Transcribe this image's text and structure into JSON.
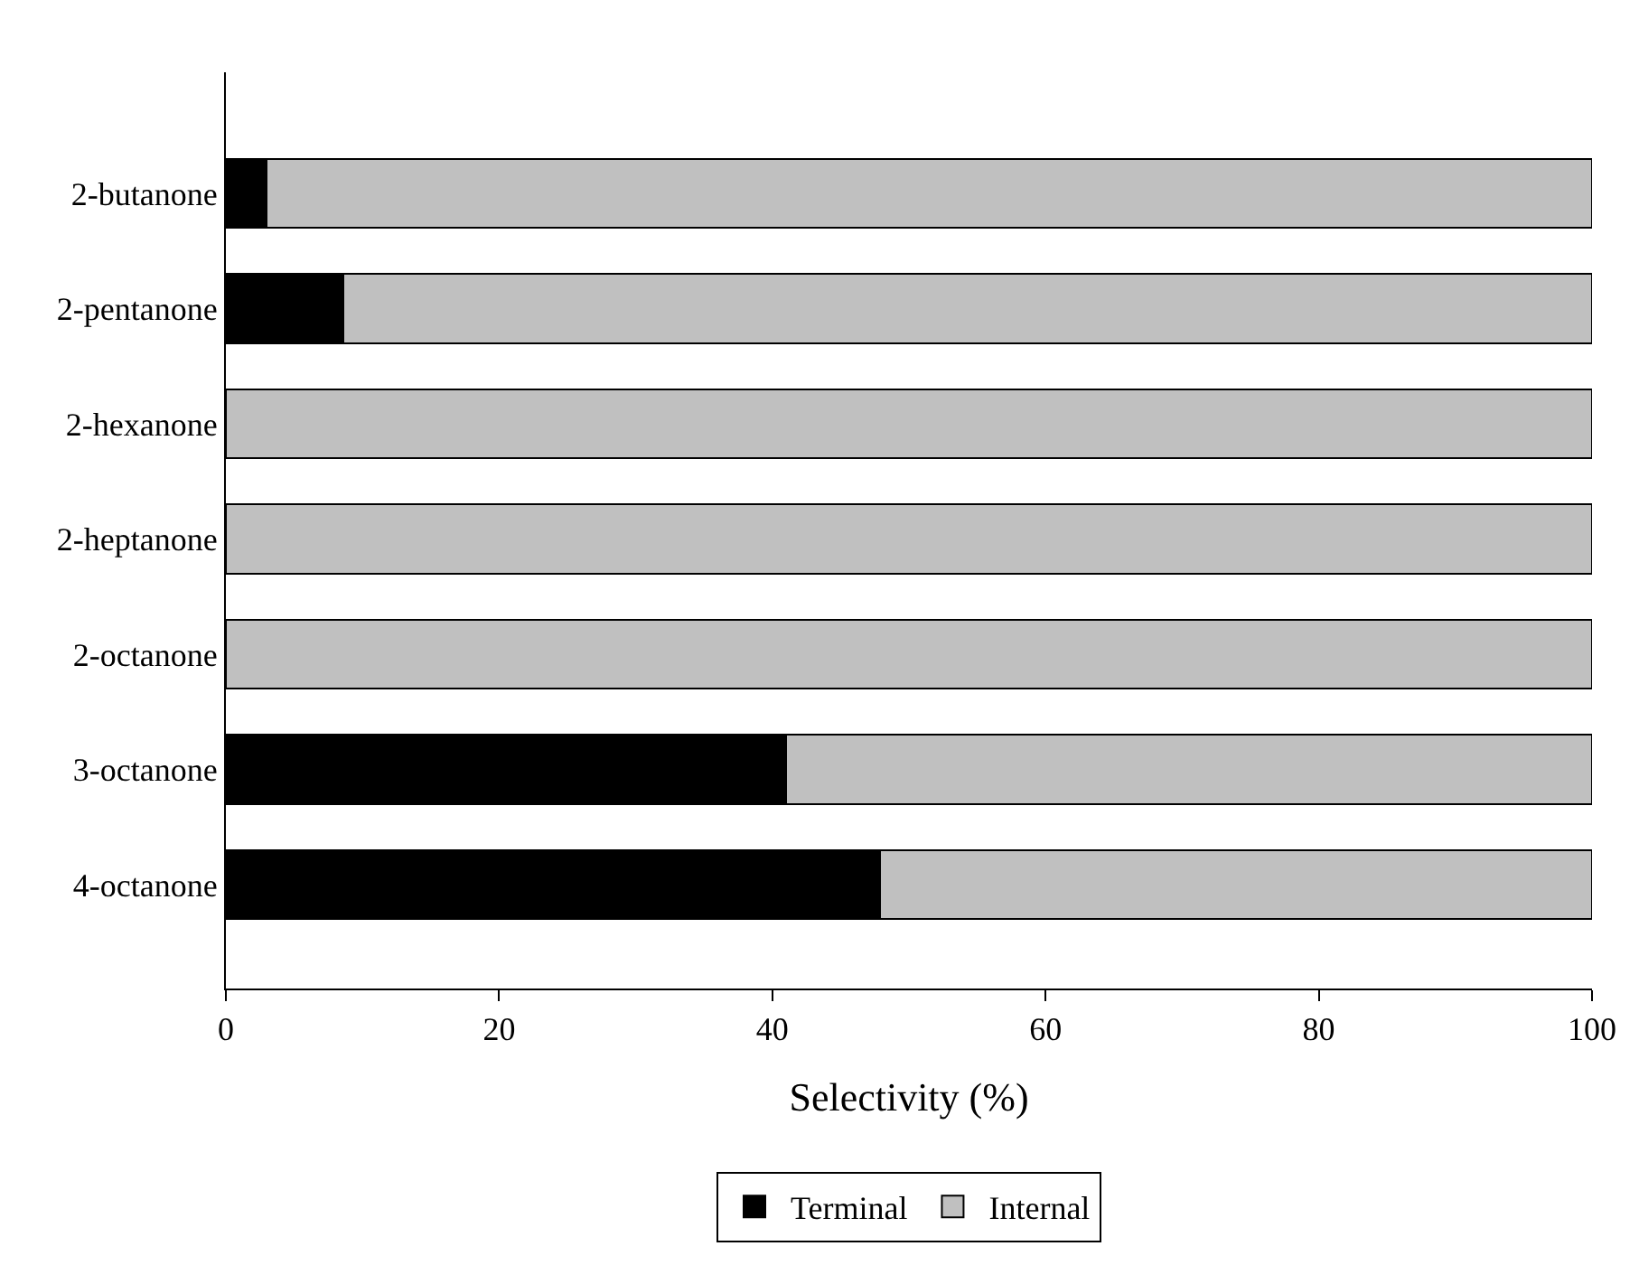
{
  "chart_data": {
    "type": "bar",
    "orientation": "horizontal",
    "stacked": true,
    "categories": [
      "2-butanone",
      "2-pentanone",
      "2-hexanone",
      "2-heptanone",
      "2-octanone",
      "3-octanone",
      "4-octanone"
    ],
    "series": [
      {
        "name": "Terminal",
        "color": "#000000",
        "values": [
          3.0,
          8.6,
          0,
          0,
          0,
          41.0,
          47.9
        ]
      },
      {
        "name": "Internal",
        "color": "#c0c0c0",
        "values": [
          97.0,
          91.4,
          100,
          100,
          100,
          59.0,
          52.1
        ]
      }
    ],
    "xlabel": "Selectivity (%)",
    "xlim": [
      0,
      100
    ],
    "xticks": [
      0,
      20,
      40,
      60,
      80,
      100
    ],
    "legend": "bottom"
  }
}
